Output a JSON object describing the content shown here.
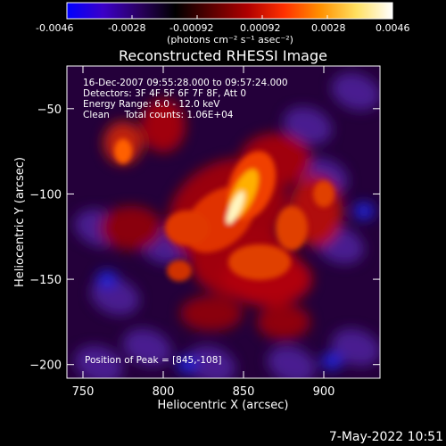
{
  "colorbar": {
    "ticks": [
      "-0.0046",
      "-0.0028",
      "-0.00092",
      "0.00092",
      "0.0028",
      "0.0046"
    ],
    "unit": "(photons cm⁻² s⁻¹ asec⁻²)",
    "colormap": [
      "#0000ff",
      "#3b00c8",
      "#2a0060",
      "#000000",
      "#5a0000",
      "#b00000",
      "#ff3000",
      "#ff9000",
      "#ffe060",
      "#ffffff"
    ]
  },
  "chart_data": {
    "type": "heatmap",
    "title": "Reconstructed RHESSI Image",
    "xlabel": "Heliocentric X (arcsec)",
    "ylabel": "Heliocentric Y (arcsec)",
    "xlim": [
      740,
      935
    ],
    "ylim": [
      -208,
      -25
    ],
    "x_ticks": [
      750,
      800,
      850,
      900
    ],
    "y_ticks": [
      -50,
      -100,
      -150,
      -200
    ],
    "value_range": [
      -0.0046,
      0.0046
    ],
    "peak": {
      "x": 845,
      "y": -108
    },
    "annotations": [
      "16-Dec-2007 09:55:28.000 to 09:57:24.000",
      "Detectors: 3F 4F 5F 6F 7F 8F, Att 0",
      "Energy Range: 6.0 - 12.0 keV",
      "Clean     Total counts: 1.06E+04"
    ],
    "peak_label": "Position of Peak = [845,-108]"
  },
  "footer": {
    "timestamp": "7-May-2022 10:51"
  }
}
